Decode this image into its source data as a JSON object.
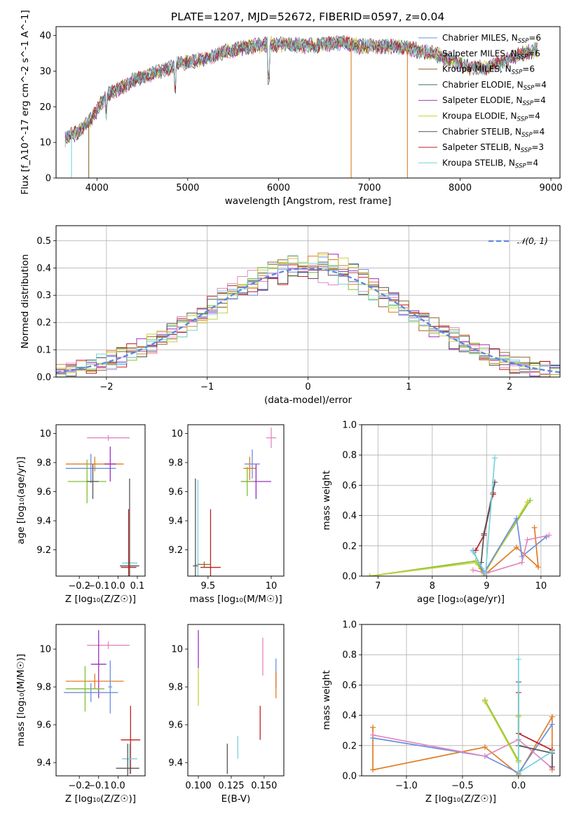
{
  "figure_title": "PLATE=1207, MJD=52672, FIBERID=0597, z=0.04",
  "colors": {
    "blue": "#6b8fe0",
    "orange": "#e07c24",
    "green": "#7fc030",
    "red": "#c02020",
    "purple": "#9b30c0",
    "brown": "#8c6a2f",
    "pink": "#e387c0",
    "gray": "#555555",
    "olive": "#c8d23c",
    "cyan": "#78d2dc",
    "darkgreen": "#3f6f5a"
  },
  "chart_data": [
    {
      "id": "spectrum",
      "type": "line",
      "xlabel": "wavelength [Angstrom, rest frame]",
      "ylabel": "Flux [f_λ10^-17 erg cm^-2 s^-1 A^-1]",
      "xlim": [
        3550,
        9100
      ],
      "ylim": [
        0,
        42.5
      ],
      "xticks": [
        4000,
        5000,
        6000,
        7000,
        8000,
        9000
      ],
      "yticks": [
        0,
        10,
        20,
        30,
        40
      ],
      "grid": false,
      "legend_position": "right",
      "legend": [
        {
          "label": "Chabrier MILES, N",
          "sub": "SSP",
          "suffix": "=6",
          "color": "#6b8fe0"
        },
        {
          "label": "Salpeter MILES, N",
          "sub": "SSP",
          "suffix": "=6",
          "color": "#e387c0"
        },
        {
          "label": "Kroupa MILES, N",
          "sub": "SSP",
          "suffix": "=6",
          "color": "#8c6a2f"
        },
        {
          "label": "Chabrier ELODIE, N",
          "sub": "SSP",
          "suffix": "=4",
          "color": "#3f6f5a"
        },
        {
          "label": "Salpeter ELODIE, N",
          "sub": "SSP",
          "suffix": "=4",
          "color": "#9b30c0"
        },
        {
          "label": "Kroupa ELODIE, N",
          "sub": "SSP",
          "suffix": "=4",
          "color": "#c8d23c"
        },
        {
          "label": "Chabrier STELIB, N",
          "sub": "SSP",
          "suffix": "=4",
          "color": "#555555"
        },
        {
          "label": "Salpeter STELIB, N",
          "sub": "SSP",
          "suffix": "=3",
          "color": "#c02020"
        },
        {
          "label": "Kroupa STELIB, N",
          "sub": "SSP",
          "suffix": "=4",
          "color": "#78d2dc"
        }
      ],
      "continuum": {
        "x": [
          3650,
          3800,
          3950,
          4100,
          4300,
          4500,
          4700,
          4900,
          5100,
          5300,
          5500,
          5700,
          5900,
          6100,
          6300,
          6500,
          6700,
          6900,
          7100,
          7300,
          7500,
          7700,
          7900,
          8100,
          8300,
          8500,
          8700,
          8850
        ],
        "y": [
          11,
          13,
          17,
          23,
          26,
          28.5,
          30,
          32,
          33,
          34.5,
          36,
          37,
          37.5,
          37.5,
          37,
          37.5,
          38,
          37,
          37,
          37,
          36,
          35,
          33,
          31,
          31,
          33,
          35,
          36
        ]
      },
      "dips": [
        {
          "x": 3720,
          "y": 0,
          "color": "#78d2dc"
        },
        {
          "x": 3910,
          "y": 0,
          "color": "#8c6a2f"
        },
        {
          "x": 6800,
          "y": 0,
          "color": "#e07c24"
        },
        {
          "x": 7420,
          "y": 0,
          "color": "#e07c24"
        }
      ]
    },
    {
      "id": "residual_hist",
      "type": "histogram",
      "xlabel": "(data-model)/error",
      "ylabel": "Normed distribution",
      "xlim": [
        -2.5,
        2.5
      ],
      "ylim": [
        0,
        0.555
      ],
      "xticks": [
        -2,
        -1,
        0,
        1,
        2
      ],
      "yticks": [
        0.0,
        0.1,
        0.2,
        0.3,
        0.4,
        0.5
      ],
      "grid": true,
      "legend_label": "𝒩(0, 1)",
      "legend_position": "top-right",
      "bin_width": 0.1,
      "series_colors": [
        "#6b8fe0",
        "#e07c24",
        "#7fc030",
        "#c02020",
        "#9b30c0",
        "#8c6a2f",
        "#e387c0",
        "#555555",
        "#c8d23c",
        "#78d2dc"
      ]
    },
    {
      "id": "age_vs_Z",
      "type": "errorbar",
      "xlabel": "Z [log₁₀(Z/Z☉)]",
      "ylabel": "age  [log₁₀(age/yr)]",
      "xlim": [
        -0.32,
        0.14
      ],
      "ylim": [
        9.02,
        10.06
      ],
      "xticks": [
        -0.2,
        -0.1,
        0.0,
        0.1
      ],
      "xticklabels": [
        "−0.2",
        "−0.1",
        "0.0",
        "0.1"
      ],
      "yticks": [
        9.2,
        9.4,
        9.6,
        9.8,
        10.0
      ],
      "grid": false,
      "points": [
        {
          "x": -0.05,
          "y": 9.97,
          "xerr": 0.11,
          "yerr": 0.02,
          "color": "#e387c0"
        },
        {
          "x": -0.12,
          "y": 9.79,
          "xerr": 0.15,
          "yerr": 0.05,
          "color": "#e07c24"
        },
        {
          "x": -0.14,
          "y": 9.76,
          "xerr": 0.13,
          "yerr": 0.1,
          "color": "#6b8fe0"
        },
        {
          "x": -0.04,
          "y": 9.79,
          "xerr": 0.03,
          "yerr": 0.12,
          "color": "#9b30c0"
        },
        {
          "x": -0.16,
          "y": 9.67,
          "xerr": 0.1,
          "yerr": 0.15,
          "color": "#7fc030"
        },
        {
          "x": -0.13,
          "y": 9.67,
          "xerr": 0.03,
          "yerr": 0.12,
          "color": "#555555"
        },
        {
          "x": 0.06,
          "y": 9.11,
          "xerr": 0.04,
          "yerr": 0.02,
          "color": "#78d2dc"
        },
        {
          "x": 0.06,
          "y": 9.09,
          "xerr": 0.05,
          "yerr": 0.6,
          "color": "#555555"
        },
        {
          "x": 0.055,
          "y": 9.08,
          "xerr": 0.04,
          "yerr": 0.4,
          "color": "#c02020"
        }
      ]
    },
    {
      "id": "age_vs_mass",
      "type": "errorbar",
      "xlabel": "mass [log₁₀(M/M☉)]",
      "ylabel": "",
      "xlim": [
        9.34,
        10.1
      ],
      "ylim": [
        9.02,
        10.06
      ],
      "xticks": [
        9.5,
        10.0
      ],
      "yticks": [
        9.2,
        9.4,
        9.6,
        9.8,
        10.0
      ],
      "grid": false,
      "points": [
        {
          "x": 10.0,
          "y": 9.97,
          "xerr": 0.04,
          "yerr": 0.07,
          "color": "#e387c0"
        },
        {
          "x": 9.85,
          "y": 9.79,
          "xerr": 0.06,
          "yerr": 0.1,
          "color": "#6b8fe0"
        },
        {
          "x": 9.83,
          "y": 9.76,
          "xerr": 0.05,
          "yerr": 0.08,
          "color": "#e07c24"
        },
        {
          "x": 9.88,
          "y": 9.67,
          "xerr": 0.12,
          "yerr": 0.12,
          "color": "#9b30c0"
        },
        {
          "x": 9.81,
          "y": 9.67,
          "xerr": 0.05,
          "yerr": 0.1,
          "color": "#7fc030"
        },
        {
          "x": 9.42,
          "y": 9.1,
          "xerr": 0.02,
          "yerr": 0.58,
          "color": "#78d2dc"
        },
        {
          "x": 9.4,
          "y": 9.09,
          "xerr": 0.02,
          "yerr": 0.6,
          "color": "#555555"
        },
        {
          "x": 9.52,
          "y": 9.08,
          "xerr": 0.08,
          "yerr": 0.4,
          "color": "#c02020"
        },
        {
          "x": 9.47,
          "y": 9.1,
          "xerr": 0.05,
          "yerr": 0.02,
          "color": "#8c6a2f"
        }
      ]
    },
    {
      "id": "massweight_vs_age",
      "type": "line",
      "xlabel": "age  [log₁₀(age/yr)]",
      "ylabel": "mass weight",
      "xlim": [
        6.7,
        10.35
      ],
      "ylim": [
        0,
        1.0
      ],
      "xticks": [
        7,
        8,
        9,
        10
      ],
      "yticks": [
        0.0,
        0.2,
        0.4,
        0.6,
        0.8,
        1.0
      ],
      "grid": true,
      "series": [
        {
          "color": "#7fc030",
          "x": [
            6.85,
            8.8,
            8.95,
            9.8
          ],
          "y": [
            0.0,
            0.1,
            0.02,
            0.5
          ]
        },
        {
          "color": "#c8d23c",
          "x": [
            6.85,
            8.8,
            8.95,
            9.75
          ],
          "y": [
            0.0,
            0.09,
            0.01,
            0.49
          ]
        },
        {
          "color": "#e07c24",
          "x": [
            8.9,
            9.0,
            9.55,
            9.95,
            9.88
          ],
          "y": [
            0.05,
            0.02,
            0.19,
            0.06,
            0.32
          ]
        },
        {
          "color": "#6b8fe0",
          "x": [
            8.75,
            8.95,
            9.55,
            9.65,
            10.1
          ],
          "y": [
            0.17,
            0.02,
            0.38,
            0.13,
            0.26
          ]
        },
        {
          "color": "#e387c0",
          "x": [
            8.75,
            9.0,
            9.65,
            9.75,
            10.15
          ],
          "y": [
            0.04,
            0.02,
            0.09,
            0.24,
            0.27
          ]
        },
        {
          "color": "#c02020",
          "x": [
            8.8,
            8.95,
            9.12,
            9.12
          ],
          "y": [
            0.17,
            0.27,
            0.55,
            0.54
          ]
        },
        {
          "color": "#555555",
          "x": [
            8.9,
            8.95,
            9.15
          ],
          "y": [
            0.09,
            0.28,
            0.62
          ]
        },
        {
          "color": "#78d2dc",
          "x": [
            8.75,
            8.98,
            9.15
          ],
          "y": [
            0.16,
            0.02,
            0.78
          ]
        }
      ]
    },
    {
      "id": "mass_vs_Z",
      "type": "errorbar",
      "xlabel": "Z [log₁₀(Z/Z☉)]",
      "ylabel": "mass [log₁₀(M/M☉)]",
      "xlim": [
        -0.32,
        0.14
      ],
      "ylim": [
        9.33,
        10.13
      ],
      "xticks": [
        -0.2,
        -0.1,
        0.0
      ],
      "xticklabels": [
        "−0.2",
        "−0.1",
        "0.0"
      ],
      "yticks": [
        9.4,
        9.6,
        9.8,
        10.0
      ],
      "grid": false,
      "points": [
        {
          "x": -0.05,
          "y": 10.02,
          "xerr": 0.11,
          "yerr": 0.02,
          "color": "#e387c0"
        },
        {
          "x": -0.1,
          "y": 9.92,
          "xerr": 0.04,
          "yerr": 0.18,
          "color": "#9b30c0"
        },
        {
          "x": -0.12,
          "y": 9.83,
          "xerr": 0.15,
          "yerr": 0.04,
          "color": "#e07c24"
        },
        {
          "x": -0.14,
          "y": 9.77,
          "xerr": 0.14,
          "yerr": 0.05,
          "color": "#6b8fe0"
        },
        {
          "x": -0.04,
          "y": 9.8,
          "xerr": 0.01,
          "yerr": 0.14,
          "color": "#6b8fe0"
        },
        {
          "x": -0.17,
          "y": 9.79,
          "xerr": 0.1,
          "yerr": 0.12,
          "color": "#7fc030"
        },
        {
          "x": 0.065,
          "y": 9.52,
          "xerr": 0.05,
          "yerr": 0.18,
          "color": "#c02020"
        },
        {
          "x": 0.06,
          "y": 9.42,
          "xerr": 0.04,
          "yerr": 0.08,
          "color": "#78d2dc"
        },
        {
          "x": 0.05,
          "y": 9.37,
          "xerr": 0.06,
          "yerr": 0.13,
          "color": "#555555"
        }
      ]
    },
    {
      "id": "mass_vs_EBV",
      "type": "errorbar",
      "xlabel": "E(B-V)",
      "ylabel": "",
      "xlim": [
        0.092,
        0.165
      ],
      "ylim": [
        9.33,
        10.13
      ],
      "xticks": [
        0.1,
        0.125,
        0.15
      ],
      "xticklabels": [
        "0.100",
        "0.125",
        "0.150"
      ],
      "yticks": [
        9.4,
        9.6,
        9.8,
        10.0
      ],
      "grid": false,
      "points": [
        {
          "x": 0.1,
          "y": 10.0,
          "xerr": 0.0,
          "yerr": 0.1,
          "color": "#9b30c0"
        },
        {
          "x": 0.1,
          "y": 9.8,
          "xerr": 0.0,
          "yerr": 0.1,
          "color": "#c8d23c"
        },
        {
          "x": 0.149,
          "y": 9.96,
          "xerr": 0.0,
          "yerr": 0.1,
          "color": "#e387c0"
        },
        {
          "x": 0.159,
          "y": 9.87,
          "xerr": 0.0,
          "yerr": 0.08,
          "color": "#6b8fe0"
        },
        {
          "x": 0.159,
          "y": 9.81,
          "xerr": 0.0,
          "yerr": 0.07,
          "color": "#e07c24"
        },
        {
          "x": 0.147,
          "y": 9.61,
          "xerr": 0.0,
          "yerr": 0.09,
          "color": "#c02020"
        },
        {
          "x": 0.13,
          "y": 9.48,
          "xerr": 0.0,
          "yerr": 0.06,
          "color": "#78d2dc"
        },
        {
          "x": 0.122,
          "y": 9.42,
          "xerr": 0.0,
          "yerr": 0.08,
          "color": "#555555"
        }
      ]
    },
    {
      "id": "massweight_vs_Z",
      "type": "line",
      "xlabel": "Z [log₁₀(Z/Z☉)]",
      "ylabel": "mass weight",
      "xlim": [
        -1.4,
        0.37
      ],
      "ylim": [
        0,
        1.0
      ],
      "xticks": [
        -1.0,
        -0.5,
        0.0
      ],
      "xticklabels": [
        "−1.0",
        "−0.5",
        "0.0"
      ],
      "yticks": [
        0.0,
        0.2,
        0.4,
        0.6,
        0.8,
        1.0
      ],
      "grid": true,
      "series": [
        {
          "color": "#e07c24",
          "x": [
            -1.3,
            -1.3,
            -0.3,
            0.0,
            0.3,
            0.3
          ],
          "y": [
            0.32,
            0.04,
            0.19,
            0.01,
            0.39,
            0.04
          ]
        },
        {
          "color": "#6b8fe0",
          "x": [
            -1.3,
            -0.3,
            0.0,
            0.3
          ],
          "y": [
            0.25,
            0.13,
            0.02,
            0.34
          ]
        },
        {
          "color": "#e387c0",
          "x": [
            -1.3,
            -0.3,
            0.0,
            0.3
          ],
          "y": [
            0.27,
            0.13,
            0.24,
            0.05
          ]
        },
        {
          "color": "#7fc030",
          "x": [
            -0.3,
            0.0,
            0.0
          ],
          "y": [
            0.5,
            0.1,
            0.4
          ]
        },
        {
          "color": "#c8d23c",
          "x": [
            -0.3,
            0.0,
            0.0
          ],
          "y": [
            0.49,
            0.09,
            0.39
          ]
        },
        {
          "color": "#c02020",
          "x": [
            0.0,
            0.0,
            0.3
          ],
          "y": [
            0.55,
            0.28,
            0.17
          ]
        },
        {
          "color": "#555555",
          "x": [
            0.0,
            0.0,
            0.3,
            0.3
          ],
          "y": [
            0.62,
            0.2,
            0.15,
            0.06
          ]
        },
        {
          "color": "#78d2dc",
          "x": [
            0.0,
            0.0,
            0.3
          ],
          "y": [
            0.77,
            0.02,
            0.16
          ]
        }
      ]
    }
  ]
}
